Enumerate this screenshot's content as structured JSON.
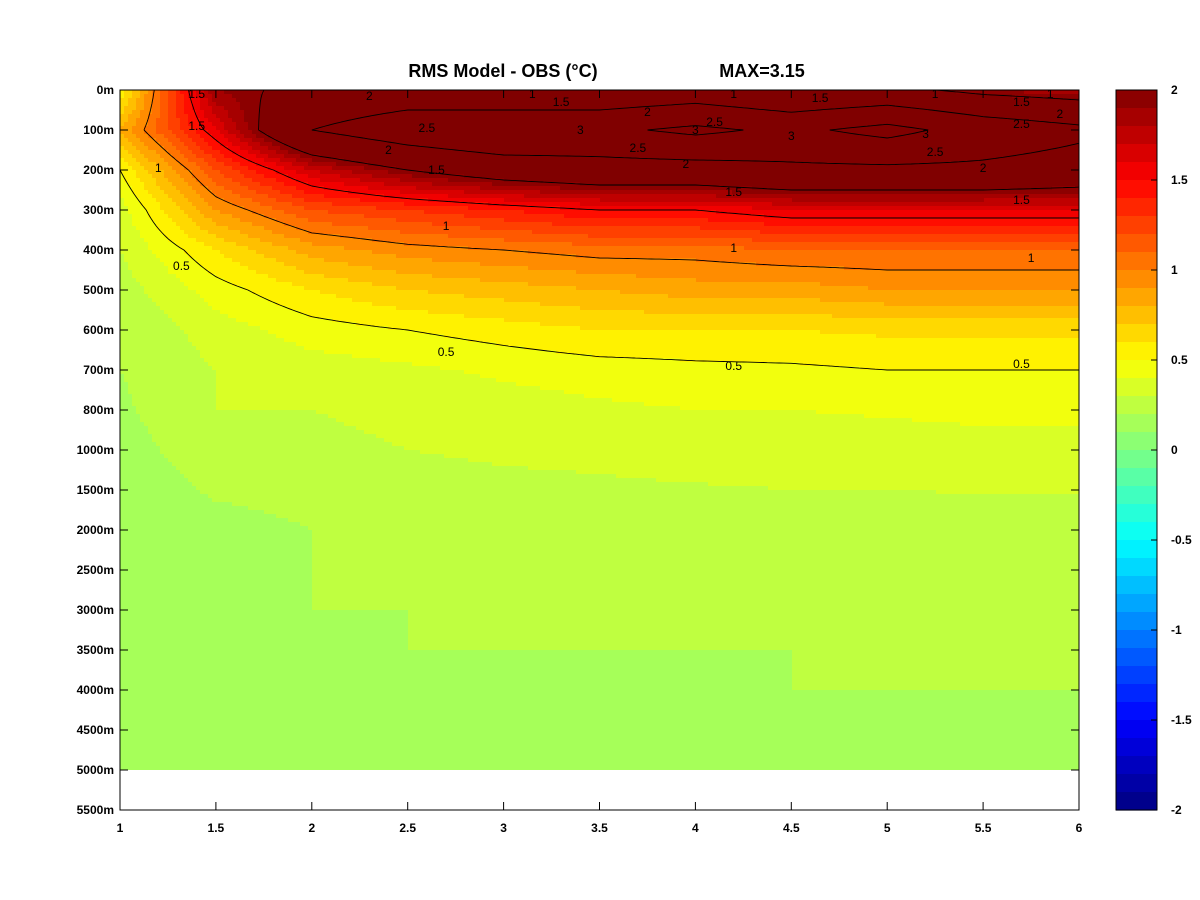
{
  "chart_data": {
    "type": "heatmap",
    "title": "RMS Model - OBS (°C)",
    "max_label": "MAX=3.15",
    "xlim": [
      1,
      6
    ],
    "x_ticks": [
      "1",
      "1.5",
      "2",
      "2.5",
      "3",
      "3.5",
      "4",
      "4.5",
      "5",
      "5.5",
      "6"
    ],
    "y_ticks": [
      "0m",
      "100m",
      "200m",
      "300m",
      "400m",
      "500m",
      "600m",
      "700m",
      "800m",
      "1000m",
      "1500m",
      "2000m",
      "2500m",
      "3000m",
      "3500m",
      "4000m",
      "4500m",
      "5000m",
      "5500m"
    ],
    "y_reversed": true,
    "colorbar": {
      "range": [
        -2,
        2
      ],
      "colormap": "jet",
      "ticks": [
        "2",
        "1.5",
        "1",
        "0.5",
        "0",
        "-0.5",
        "-1",
        "-1.5",
        "-2"
      ]
    },
    "contour_levels": [
      0.5,
      1,
      1.5,
      2,
      2.5,
      3
    ],
    "x": [
      1,
      1.5,
      2,
      2.5,
      3,
      3.5,
      4,
      4.5,
      5,
      5.5,
      6
    ],
    "depths": [
      "0m",
      "100m",
      "200m",
      "300m",
      "400m",
      "500m",
      "600m",
      "700m",
      "800m",
      "1000m",
      "1500m",
      "2000m",
      "2500m",
      "3000m",
      "3500m",
      "4000m",
      "4500m",
      "5000m"
    ],
    "values": [
      [
        0.5,
        1.9,
        2.1,
        2.2,
        2.0,
        2.1,
        2.2,
        2.0,
        2.1,
        1.9,
        1.8
      ],
      [
        0.8,
        1.6,
        2.5,
        2.8,
        3.0,
        2.9,
        3.1,
        2.9,
        3.15,
        2.8,
        2.6
      ],
      [
        0.5,
        1.2,
        1.7,
        2.0,
        2.2,
        2.3,
        2.3,
        2.4,
        2.4,
        2.4,
        2.3
      ],
      [
        0.35,
        0.9,
        1.2,
        1.3,
        1.4,
        1.5,
        1.5,
        1.6,
        1.6,
        1.6,
        1.6
      ],
      [
        0.3,
        0.6,
        0.85,
        0.95,
        1.0,
        1.05,
        1.05,
        1.1,
        1.1,
        1.1,
        1.1
      ],
      [
        0.25,
        0.45,
        0.6,
        0.7,
        0.75,
        0.8,
        0.85,
        0.85,
        0.9,
        0.9,
        0.9
      ],
      [
        0.2,
        0.35,
        0.45,
        0.5,
        0.55,
        0.6,
        0.6,
        0.6,
        0.62,
        0.62,
        0.62
      ],
      [
        0.2,
        0.3,
        0.35,
        0.38,
        0.42,
        0.45,
        0.47,
        0.48,
        0.5,
        0.5,
        0.5
      ],
      [
        0.18,
        0.3,
        0.3,
        0.32,
        0.35,
        0.38,
        0.4,
        0.4,
        0.41,
        0.42,
        0.42
      ],
      [
        0.15,
        0.27,
        0.28,
        0.3,
        0.32,
        0.33,
        0.35,
        0.35,
        0.36,
        0.37,
        0.37
      ],
      [
        0.12,
        0.22,
        0.24,
        0.25,
        0.27,
        0.28,
        0.29,
        0.3,
        0.3,
        0.31,
        0.31
      ],
      [
        0.1,
        0.15,
        0.2,
        0.2,
        0.2,
        0.2,
        0.2,
        0.2,
        0.2,
        0.2,
        0.2
      ],
      [
        0.1,
        0.15,
        0.2,
        0.2,
        0.2,
        0.2,
        0.2,
        0.2,
        0.2,
        0.2,
        0.2
      ],
      [
        0.1,
        0.14,
        0.2,
        0.2,
        0.2,
        0.2,
        0.2,
        0.2,
        0.2,
        0.2,
        0.2
      ],
      [
        0.1,
        0.12,
        0.17,
        0.2,
        0.2,
        0.2,
        0.2,
        0.2,
        0.2,
        0.2,
        0.2
      ],
      [
        0.1,
        0.1,
        0.12,
        0.15,
        0.17,
        0.18,
        0.19,
        0.2,
        0.2,
        0.2,
        0.2
      ],
      [
        0.1,
        0.1,
        0.1,
        0.12,
        0.13,
        0.14,
        0.15,
        0.15,
        0.15,
        0.15,
        0.15
      ],
      [
        0.1,
        0.1,
        0.1,
        0.12,
        0.13,
        0.14,
        0.15,
        0.15,
        0.15,
        0.15,
        0.15
      ]
    ],
    "contour_labels": [
      {
        "text": "1.5",
        "x": 1.4,
        "depth_index": 0.1
      },
      {
        "text": "2",
        "x": 2.3,
        "depth_index": 0.15
      },
      {
        "text": "1",
        "x": 3.15,
        "depth_index": 0.1
      },
      {
        "text": "1.5",
        "x": 3.3,
        "depth_index": 0.3
      },
      {
        "text": "1",
        "x": 4.2,
        "depth_index": 0.1
      },
      {
        "text": "1.5",
        "x": 4.65,
        "depth_index": 0.2
      },
      {
        "text": "1",
        "x": 5.25,
        "depth_index": 0.1
      },
      {
        "text": "1.5",
        "x": 5.7,
        "depth_index": 0.3
      },
      {
        "text": "1",
        "x": 5.85,
        "depth_index": 0.1
      },
      {
        "text": "1.5",
        "x": 1.4,
        "depth_index": 0.9
      },
      {
        "text": "2",
        "x": 3.75,
        "depth_index": 0.55
      },
      {
        "text": "2.5",
        "x": 2.6,
        "depth_index": 0.95
      },
      {
        "text": "3",
        "x": 3.4,
        "depth_index": 1.0
      },
      {
        "text": "3",
        "x": 4.0,
        "depth_index": 1.0
      },
      {
        "text": "2.5",
        "x": 4.1,
        "depth_index": 0.8
      },
      {
        "text": "3",
        "x": 4.5,
        "depth_index": 1.15
      },
      {
        "text": "3",
        "x": 5.2,
        "depth_index": 1.1
      },
      {
        "text": "2.5",
        "x": 5.7,
        "depth_index": 0.85
      },
      {
        "text": "2",
        "x": 5.9,
        "depth_index": 0.6
      },
      {
        "text": "2.5",
        "x": 3.7,
        "depth_index": 1.45
      },
      {
        "text": "2",
        "x": 2.4,
        "depth_index": 1.5
      },
      {
        "text": "2.5",
        "x": 5.25,
        "depth_index": 1.55
      },
      {
        "text": "2",
        "x": 3.95,
        "depth_index": 1.85
      },
      {
        "text": "2",
        "x": 5.5,
        "depth_index": 1.95
      },
      {
        "text": "1",
        "x": 1.2,
        "depth_index": 1.95
      },
      {
        "text": "1.5",
        "x": 2.65,
        "depth_index": 2.0
      },
      {
        "text": "1.5",
        "x": 4.2,
        "depth_index": 2.55
      },
      {
        "text": "1.5",
        "x": 5.7,
        "depth_index": 2.75
      },
      {
        "text": "1",
        "x": 2.7,
        "depth_index": 3.4
      },
      {
        "text": "1",
        "x": 4.2,
        "depth_index": 3.95
      },
      {
        "text": "1",
        "x": 5.75,
        "depth_index": 4.2
      },
      {
        "text": "0.5",
        "x": 1.32,
        "depth_index": 4.4
      },
      {
        "text": "0.5",
        "x": 2.7,
        "depth_index": 6.55
      },
      {
        "text": "0.5",
        "x": 4.2,
        "depth_index": 6.9
      },
      {
        "text": "0.5",
        "x": 5.7,
        "depth_index": 6.85
      }
    ]
  },
  "colors": {
    "background": "#ffffff",
    "below_data": "#ffffff",
    "contour": "#000000"
  }
}
